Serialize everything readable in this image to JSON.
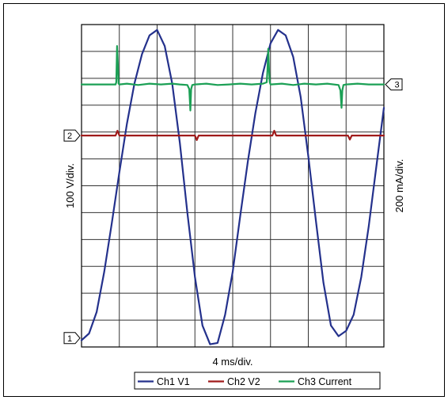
{
  "chart_data": {
    "type": "line",
    "title": "",
    "xlabel": "4 ms/div.",
    "ylabel_left": "100 V/div.",
    "ylabel_right": "200 mA/div.",
    "x_divisions": 8,
    "y_divisions": 12,
    "grid": true,
    "legend_position": "bottom",
    "channel_markers": [
      {
        "label": "1",
        "side": "left",
        "level_div": 0.33
      },
      {
        "label": "2",
        "side": "left",
        "level_div": 7.87
      },
      {
        "label": "3",
        "side": "right",
        "level_div": 9.77
      }
    ],
    "series": [
      {
        "name": "Ch1 V1",
        "color": "#24318c",
        "x_div": [
          0.0,
          0.2,
          0.4,
          0.6,
          0.8,
          1.0,
          1.2,
          1.4,
          1.6,
          1.8,
          2.0,
          2.2,
          2.4,
          2.6,
          2.8,
          3.0,
          3.2,
          3.4,
          3.6,
          3.8,
          4.0,
          4.2,
          4.4,
          4.6,
          4.8,
          5.0,
          5.2,
          5.4,
          5.6,
          5.8,
          6.0,
          6.2,
          6.4,
          6.6,
          6.8,
          7.0,
          7.2,
          7.4,
          7.6,
          7.8,
          8.0
        ],
        "y_div": [
          0.25,
          0.5,
          1.3,
          2.8,
          4.6,
          6.5,
          8.3,
          9.8,
          10.9,
          11.6,
          11.8,
          11.2,
          9.8,
          7.6,
          5.0,
          2.6,
          0.8,
          0.1,
          0.15,
          1.2,
          2.8,
          4.9,
          6.9,
          8.7,
          10.2,
          11.3,
          11.8,
          11.6,
          10.8,
          9.3,
          7.1,
          4.7,
          2.4,
          0.8,
          0.4,
          0.6,
          1.2,
          2.6,
          4.5,
          6.7,
          8.9
        ]
      },
      {
        "name": "Ch2 V2",
        "color": "#a01b1b",
        "x_div": [
          0.0,
          0.9,
          0.95,
          1.0,
          1.05,
          1.1,
          3.0,
          3.05,
          3.1,
          3.15,
          5.0,
          5.05,
          5.1,
          5.15,
          5.2,
          7.0,
          7.05,
          7.1,
          7.15,
          8.0
        ],
        "y_div": [
          7.87,
          7.87,
          8.05,
          7.87,
          7.87,
          7.87,
          7.87,
          7.7,
          7.87,
          7.87,
          7.87,
          7.87,
          8.05,
          7.87,
          7.87,
          7.87,
          7.87,
          7.72,
          7.87,
          7.87
        ]
      },
      {
        "name": "Ch3 Current",
        "color": "#1ba055",
        "x_div": [
          0.0,
          0.9,
          0.92,
          0.94,
          0.96,
          0.98,
          1.0,
          1.2,
          1.5,
          1.8,
          2.1,
          2.4,
          2.6,
          2.8,
          2.85,
          2.88,
          2.9,
          2.93,
          3.0,
          3.3,
          3.6,
          3.9,
          4.2,
          4.5,
          4.8,
          4.9,
          4.92,
          4.94,
          4.96,
          4.98,
          5.0,
          5.3,
          5.6,
          5.9,
          6.2,
          6.5,
          6.8,
          6.85,
          6.88,
          6.9,
          6.93,
          7.0,
          7.3,
          7.6,
          8.0
        ],
        "y_div": [
          9.77,
          9.77,
          9.85,
          11.2,
          10.6,
          9.8,
          9.77,
          9.8,
          9.75,
          9.8,
          9.77,
          9.8,
          9.77,
          9.75,
          9.6,
          8.8,
          9.6,
          9.75,
          9.77,
          9.8,
          9.75,
          9.77,
          9.8,
          9.77,
          9.8,
          9.85,
          10.3,
          11.1,
          10.4,
          9.85,
          9.77,
          9.8,
          9.75,
          9.8,
          9.77,
          9.8,
          9.75,
          9.55,
          8.9,
          9.55,
          9.75,
          9.77,
          9.8,
          9.77,
          9.77
        ]
      }
    ]
  }
}
